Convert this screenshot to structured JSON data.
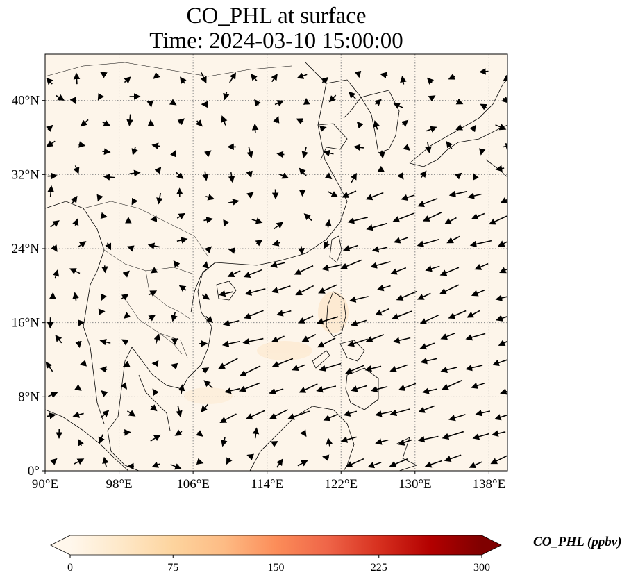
{
  "title": {
    "line1": "CO_PHL at surface",
    "line2": "Time: 2024-03-10 15:00:00"
  },
  "map": {
    "lon_range": [
      90,
      140
    ],
    "lat_range": [
      0,
      45
    ],
    "background_color": "#fdf5ea",
    "coastline_color": "#000000",
    "gridline_style": "dotted gray",
    "x_ticks": [
      {
        "value": 90,
        "label": "90°E"
      },
      {
        "value": 98,
        "label": "98°E"
      },
      {
        "value": 106,
        "label": "106°E"
      },
      {
        "value": 114,
        "label": "114°E"
      },
      {
        "value": 122,
        "label": "122°E"
      },
      {
        "value": 130,
        "label": "130°E"
      },
      {
        "value": 138,
        "label": "138°E"
      }
    ],
    "y_ticks": [
      {
        "value": 0,
        "label": "0°"
      },
      {
        "value": 8,
        "label": "8°N"
      },
      {
        "value": 16,
        "label": "16°N"
      },
      {
        "value": 24,
        "label": "24°N"
      },
      {
        "value": 32,
        "label": "32°N"
      },
      {
        "value": 40,
        "label": "40°N"
      }
    ],
    "wind_vectors_description": "surface wind arrows; northeasterly flow over the South China Sea and western Pacific, weaker variable winds over the continent"
  },
  "colorbar": {
    "label": "CO_PHL (ppbv)",
    "min": 0,
    "max": 300,
    "ticks": [
      {
        "value": 0,
        "label": "0"
      },
      {
        "value": 75,
        "label": "75"
      },
      {
        "value": 150,
        "label": "150"
      },
      {
        "value": 225,
        "label": "225"
      },
      {
        "value": 300,
        "label": "300"
      }
    ],
    "colormap": "OrRd",
    "colors": [
      "#fff7ec",
      "#fee8c8",
      "#fdd49e",
      "#fdbb84",
      "#fc8d59",
      "#ef6548",
      "#d7301f",
      "#b30000",
      "#7f0000"
    ],
    "extend": "both"
  }
}
